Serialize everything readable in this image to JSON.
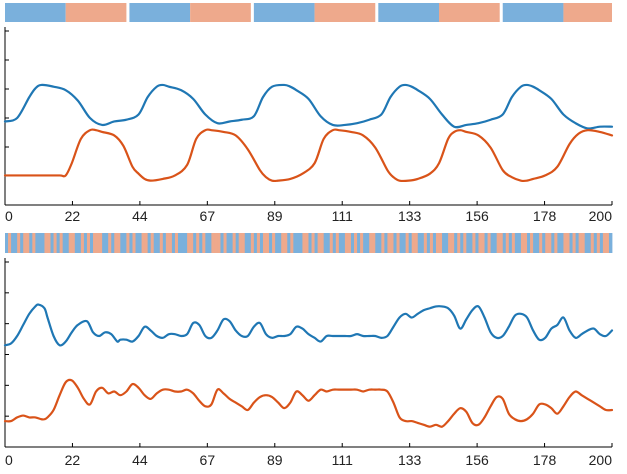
{
  "colors": {
    "blue": "#1f77b4",
    "orange": "#d95319",
    "blue_band": "#7ab0dc",
    "orange_band": "#eea98c",
    "axis": "#000000",
    "background": "#ffffff"
  },
  "chart_data": [
    {
      "type": "line",
      "title": "",
      "xlabel": "",
      "ylabel": "",
      "xlim": [
        0,
        200
      ],
      "ylim": [
        0,
        1
      ],
      "grid": false,
      "legend": "none",
      "x_ticks": [
        "0",
        "22",
        "44",
        "67",
        "89",
        "111",
        "133",
        "156",
        "178",
        "200"
      ],
      "label_band": {
        "segments": [
          {
            "start": 0,
            "end": 20,
            "class": "blue"
          },
          {
            "start": 20,
            "end": 40,
            "class": "orange"
          },
          {
            "start": 41,
            "end": 61,
            "class": "blue"
          },
          {
            "start": 61,
            "end": 81,
            "class": "orange"
          },
          {
            "start": 82,
            "end": 102,
            "class": "blue"
          },
          {
            "start": 102,
            "end": 122,
            "class": "orange"
          },
          {
            "start": 123,
            "end": 143,
            "class": "blue"
          },
          {
            "start": 143,
            "end": 163,
            "class": "orange"
          },
          {
            "start": 164,
            "end": 184,
            "class": "blue"
          },
          {
            "start": 184,
            "end": 200,
            "class": "orange"
          }
        ]
      },
      "series": [
        {
          "color_key": "blue",
          "x": [
            0,
            4,
            8,
            10,
            12,
            16,
            20,
            24,
            28,
            32,
            36,
            40,
            44,
            47,
            50,
            52,
            54,
            58,
            62,
            66,
            70,
            74,
            78,
            82,
            85,
            88,
            92,
            94,
            96,
            100,
            104,
            108,
            112,
            116,
            120,
            124,
            127,
            130,
            132,
            134,
            136,
            140,
            144,
            148,
            152,
            156,
            160,
            164,
            167,
            170,
            172,
            174,
            176,
            180,
            184,
            188,
            192,
            196,
            200
          ],
          "y": [
            0.48,
            0.5,
            0.62,
            0.67,
            0.69,
            0.68,
            0.66,
            0.6,
            0.5,
            0.46,
            0.48,
            0.49,
            0.52,
            0.62,
            0.68,
            0.69,
            0.68,
            0.66,
            0.61,
            0.52,
            0.47,
            0.48,
            0.49,
            0.51,
            0.62,
            0.68,
            0.69,
            0.68,
            0.66,
            0.61,
            0.51,
            0.46,
            0.46,
            0.47,
            0.49,
            0.52,
            0.62,
            0.68,
            0.69,
            0.68,
            0.66,
            0.61,
            0.52,
            0.45,
            0.46,
            0.47,
            0.49,
            0.52,
            0.62,
            0.68,
            0.69,
            0.68,
            0.66,
            0.61,
            0.52,
            0.47,
            0.44,
            0.45,
            0.45
          ]
        },
        {
          "color_key": "orange",
          "x": [
            0,
            6,
            12,
            18,
            20,
            22,
            25,
            28,
            30,
            32,
            36,
            39,
            42,
            44,
            46,
            48,
            52,
            56,
            60,
            63,
            66,
            68,
            72,
            76,
            80,
            84,
            86,
            88,
            90,
            94,
            98,
            102,
            105,
            108,
            110,
            114,
            118,
            122,
            126,
            128,
            130,
            133,
            136,
            140,
            143,
            146,
            148,
            150,
            152,
            156,
            160,
            164,
            167,
            170,
            172,
            174,
            178,
            182,
            186,
            189,
            192,
            196,
            200
          ],
          "y": [
            0.17,
            0.17,
            0.17,
            0.17,
            0.17,
            0.24,
            0.38,
            0.43,
            0.43,
            0.42,
            0.4,
            0.34,
            0.22,
            0.18,
            0.15,
            0.14,
            0.15,
            0.17,
            0.23,
            0.38,
            0.43,
            0.43,
            0.42,
            0.4,
            0.32,
            0.2,
            0.16,
            0.14,
            0.14,
            0.15,
            0.18,
            0.24,
            0.38,
            0.43,
            0.43,
            0.42,
            0.4,
            0.33,
            0.2,
            0.16,
            0.14,
            0.14,
            0.15,
            0.18,
            0.24,
            0.38,
            0.42,
            0.43,
            0.42,
            0.4,
            0.33,
            0.2,
            0.16,
            0.14,
            0.14,
            0.15,
            0.17,
            0.22,
            0.35,
            0.41,
            0.43,
            0.42,
            0.4
          ]
        }
      ]
    },
    {
      "type": "line",
      "title": "",
      "xlabel": "",
      "ylabel": "",
      "xlim": [
        0,
        200
      ],
      "ylim": [
        0,
        1
      ],
      "grid": false,
      "legend": "none",
      "x_ticks": [
        "0",
        "22",
        "44",
        "67",
        "89",
        "111",
        "133",
        "156",
        "178",
        "200"
      ],
      "label_band": {
        "pattern": "rapidly alternating",
        "sequence": [
          0,
          1,
          0,
          0,
          1,
          0,
          1,
          1,
          0,
          1,
          0,
          0,
          0,
          1,
          1,
          0,
          1,
          0,
          1,
          0,
          0,
          1,
          1,
          0,
          0,
          1,
          0,
          1,
          0,
          1,
          1,
          1,
          0,
          0,
          1,
          0,
          1,
          1,
          0,
          0,
          1,
          0,
          1,
          0,
          0,
          1,
          1,
          0,
          1,
          0,
          0,
          1,
          0,
          1,
          1,
          0,
          1,
          0,
          0,
          0,
          1,
          1,
          0,
          1,
          0,
          1,
          0,
          0,
          1,
          1,
          1,
          0,
          1,
          0,
          0,
          1,
          0,
          1,
          1,
          0,
          0,
          1,
          0,
          1,
          0,
          1,
          1,
          0,
          1,
          0,
          0,
          1,
          1,
          0,
          1,
          0,
          0,
          0,
          1,
          1,
          0,
          1,
          0,
          1,
          1,
          0,
          0,
          1,
          0,
          1,
          0,
          0,
          1,
          1,
          0,
          1,
          0,
          1,
          0,
          0,
          1,
          1,
          0,
          0,
          1,
          0,
          1,
          1,
          0,
          1,
          0,
          0,
          1,
          0,
          1,
          1,
          0,
          0,
          1,
          0,
          1,
          0,
          1,
          1,
          0,
          0,
          1,
          1,
          0,
          1,
          0,
          1,
          0,
          0,
          1,
          0,
          1,
          1,
          0,
          1,
          0,
          0,
          1,
          1,
          0,
          1,
          0,
          1,
          0,
          0,
          1,
          1,
          0,
          1,
          0,
          0,
          1,
          0,
          1,
          1,
          0,
          1,
          0,
          0,
          1,
          1,
          0,
          1,
          0,
          1,
          1,
          0,
          0,
          1,
          0,
          1,
          0,
          1,
          1,
          0
        ]
      },
      "series": [
        {
          "color_key": "blue",
          "x": [
            0,
            2,
            4,
            6,
            8,
            10,
            11,
            13,
            14,
            16,
            18,
            20,
            22,
            24,
            27,
            29,
            31,
            33,
            35,
            37,
            38,
            40,
            42,
            44,
            46,
            48,
            50,
            52,
            54,
            56,
            58,
            60,
            62,
            64,
            66,
            68,
            70,
            72,
            74,
            76,
            78,
            80,
            82,
            84,
            86,
            88,
            90,
            92,
            94,
            96,
            98,
            100,
            102,
            104,
            106,
            108,
            110,
            112,
            114,
            116,
            118,
            120,
            122,
            124,
            126,
            128,
            130,
            132,
            134,
            136,
            138,
            140,
            142,
            144,
            146,
            148,
            150,
            152,
            154,
            156,
            158,
            160,
            162,
            164,
            166,
            168,
            170,
            172,
            174,
            176,
            178,
            180,
            182,
            184,
            186,
            188,
            190,
            192,
            194,
            196,
            198,
            200
          ],
          "y": [
            0.55,
            0.56,
            0.6,
            0.66,
            0.72,
            0.76,
            0.77,
            0.75,
            0.7,
            0.6,
            0.55,
            0.57,
            0.62,
            0.66,
            0.68,
            0.62,
            0.6,
            0.62,
            0.61,
            0.57,
            0.58,
            0.58,
            0.57,
            0.6,
            0.65,
            0.63,
            0.6,
            0.59,
            0.61,
            0.61,
            0.6,
            0.61,
            0.67,
            0.66,
            0.6,
            0.59,
            0.63,
            0.69,
            0.68,
            0.63,
            0.6,
            0.6,
            0.65,
            0.67,
            0.61,
            0.59,
            0.6,
            0.6,
            0.61,
            0.65,
            0.64,
            0.61,
            0.59,
            0.57,
            0.6,
            0.6,
            0.6,
            0.6,
            0.6,
            0.61,
            0.6,
            0.6,
            0.6,
            0.59,
            0.6,
            0.65,
            0.7,
            0.72,
            0.7,
            0.72,
            0.74,
            0.75,
            0.76,
            0.76,
            0.75,
            0.71,
            0.64,
            0.69,
            0.74,
            0.76,
            0.7,
            0.62,
            0.59,
            0.6,
            0.65,
            0.71,
            0.72,
            0.7,
            0.63,
            0.58,
            0.59,
            0.64,
            0.66,
            0.7,
            0.63,
            0.59,
            0.61,
            0.63,
            0.64,
            0.61,
            0.6,
            0.63
          ]
        },
        {
          "color_key": "orange",
          "x": [
            0,
            2,
            4,
            6,
            8,
            10,
            12,
            13,
            14,
            16,
            18,
            20,
            22,
            24,
            26,
            28,
            30,
            32,
            34,
            36,
            38,
            40,
            42,
            44,
            46,
            48,
            50,
            52,
            54,
            56,
            58,
            60,
            62,
            64,
            66,
            68,
            70,
            72,
            74,
            76,
            78,
            80,
            82,
            84,
            86,
            88,
            90,
            92,
            94,
            96,
            98,
            100,
            102,
            104,
            106,
            108,
            110,
            112,
            114,
            116,
            118,
            120,
            122,
            124,
            126,
            128,
            130,
            132,
            134,
            136,
            138,
            140,
            142,
            144,
            146,
            148,
            150,
            152,
            154,
            156,
            158,
            160,
            162,
            164,
            166,
            168,
            170,
            172,
            174,
            176,
            178,
            180,
            182,
            184,
            186,
            188,
            190,
            192,
            194,
            196,
            198,
            200
          ],
          "y": [
            0.14,
            0.14,
            0.16,
            0.17,
            0.16,
            0.16,
            0.15,
            0.15,
            0.16,
            0.2,
            0.28,
            0.35,
            0.36,
            0.32,
            0.26,
            0.23,
            0.3,
            0.32,
            0.29,
            0.3,
            0.28,
            0.3,
            0.34,
            0.32,
            0.28,
            0.26,
            0.29,
            0.31,
            0.31,
            0.3,
            0.3,
            0.31,
            0.29,
            0.25,
            0.22,
            0.23,
            0.31,
            0.29,
            0.26,
            0.24,
            0.22,
            0.2,
            0.24,
            0.27,
            0.28,
            0.27,
            0.24,
            0.21,
            0.24,
            0.3,
            0.28,
            0.25,
            0.28,
            0.31,
            0.3,
            0.31,
            0.31,
            0.31,
            0.31,
            0.31,
            0.3,
            0.31,
            0.31,
            0.31,
            0.3,
            0.24,
            0.16,
            0.14,
            0.14,
            0.13,
            0.12,
            0.11,
            0.12,
            0.11,
            0.14,
            0.18,
            0.21,
            0.19,
            0.13,
            0.12,
            0.16,
            0.22,
            0.27,
            0.26,
            0.18,
            0.15,
            0.14,
            0.15,
            0.18,
            0.23,
            0.23,
            0.21,
            0.18,
            0.22,
            0.27,
            0.3,
            0.28,
            0.26,
            0.24,
            0.22,
            0.2,
            0.2
          ]
        }
      ]
    }
  ]
}
